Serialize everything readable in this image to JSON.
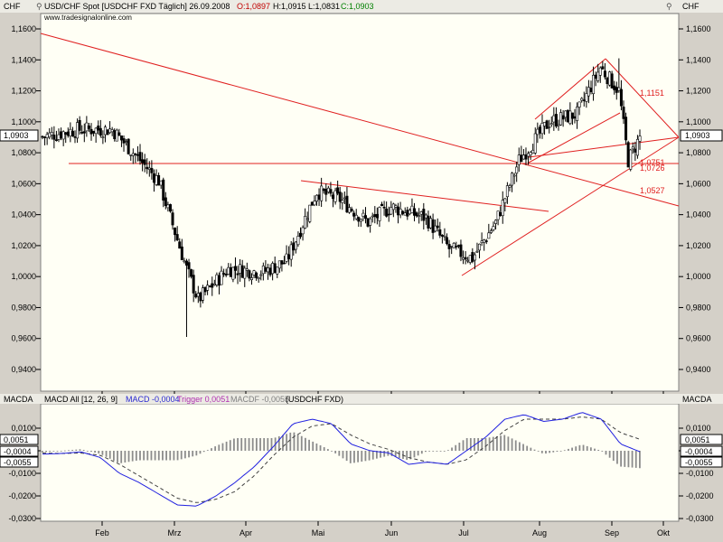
{
  "header": {
    "currency": "CHF",
    "title": "USD/CHF Spot [USDCHF FXD  Täglich] 26.09.2008",
    "open": "O:1,0897",
    "high": "H:1,0915",
    "low": "L:1,0831",
    "close": "C:1,0903",
    "site": "www.tradesignalonline.com",
    "price_badge": "1,0903"
  },
  "macd_header": {
    "label": "MACDA",
    "macd_all": "MACD All [12, 26, 9]",
    "macd": "MACD -0,0004",
    "trigger": "Trigger 0,0051",
    "macdf": "MACDF -0,0055",
    "symbol": "(USDCHF FXD)"
  },
  "annotations": {
    "l1": "1,1151",
    "l2": "1,0751",
    "l3": "1,0726",
    "l4": "1,0527"
  },
  "price_axis": {
    "ticks": [
      "1,1600",
      "1,1400",
      "1,1200",
      "1,1000",
      "1,0800",
      "1,0600",
      "1,0400",
      "1,0200",
      "1,0000",
      "0,9800",
      "0,9600",
      "0,9400"
    ]
  },
  "macd_axis": {
    "ticks": [
      "0,0100",
      "0,0000",
      "-0,0100",
      "-0,0200",
      "-0,0300"
    ],
    "badges": [
      "0,0051",
      "-0,0004",
      "-0,0055"
    ]
  },
  "x_axis": {
    "months": [
      "Feb",
      "Mrz",
      "Apr",
      "Mai",
      "Jun",
      "Jul",
      "Aug",
      "Sep",
      "Okt"
    ]
  },
  "chart_data": [
    {
      "type": "candlestick",
      "ylim": [
        0.93,
        1.1755
      ],
      "ohlc_key_points": [
        {
          "x": 0,
          "close": 1.0903
        },
        {
          "x": 15,
          "close": 1.095
        },
        {
          "x": 30,
          "close": 1.095
        },
        {
          "x": 50,
          "close": 1.062
        },
        {
          "x": 62,
          "close": 1.005
        },
        {
          "x": 67,
          "close": 0.985
        },
        {
          "x": 80,
          "close": 1.005
        },
        {
          "x": 95,
          "close": 1.003
        },
        {
          "x": 105,
          "close": 1.01
        },
        {
          "x": 118,
          "close": 1.055
        },
        {
          "x": 128,
          "close": 1.05
        },
        {
          "x": 140,
          "close": 1.035
        },
        {
          "x": 150,
          "close": 1.045
        },
        {
          "x": 165,
          "close": 1.038
        },
        {
          "x": 175,
          "close": 1.018
        },
        {
          "x": 185,
          "close": 1.012
        },
        {
          "x": 195,
          "close": 1.035
        },
        {
          "x": 205,
          "close": 1.075
        },
        {
          "x": 218,
          "close": 1.1
        },
        {
          "x": 230,
          "close": 1.105
        },
        {
          "x": 240,
          "close": 1.135
        },
        {
          "x": 248,
          "close": 1.12
        },
        {
          "x": 252,
          "close": 1.075
        },
        {
          "x": 257,
          "close": 1.09
        }
      ]
    },
    {
      "type": "line",
      "series": [
        {
          "name": "MACD",
          "values": [
            -0.0015,
            -0.0012,
            -0.0005,
            -0.003,
            -0.01,
            -0.014,
            -0.019,
            -0.024,
            -0.0245,
            -0.02,
            -0.014,
            -0.007,
            0.002,
            0.012,
            0.014,
            0.012,
            0.003,
            0.0,
            -0.001,
            -0.006,
            -0.005,
            -0.006,
            0.0,
            0.006,
            0.014,
            0.016,
            0.013,
            0.014,
            0.017,
            0.014,
            0.003,
            -0.0004
          ]
        },
        {
          "name": "Trigger",
          "values": [
            -0.001,
            -0.0012,
            -0.001,
            -0.002,
            -0.006,
            -0.011,
            -0.016,
            -0.021,
            -0.023,
            -0.0215,
            -0.018,
            -0.011,
            -0.002,
            0.006,
            0.011,
            0.012,
            0.007,
            0.003,
            0.0005,
            -0.003,
            -0.005,
            -0.006,
            -0.004,
            0.002,
            0.009,
            0.014,
            0.014,
            0.014,
            0.015,
            0.014,
            0.008,
            0.0051
          ]
        }
      ]
    }
  ]
}
